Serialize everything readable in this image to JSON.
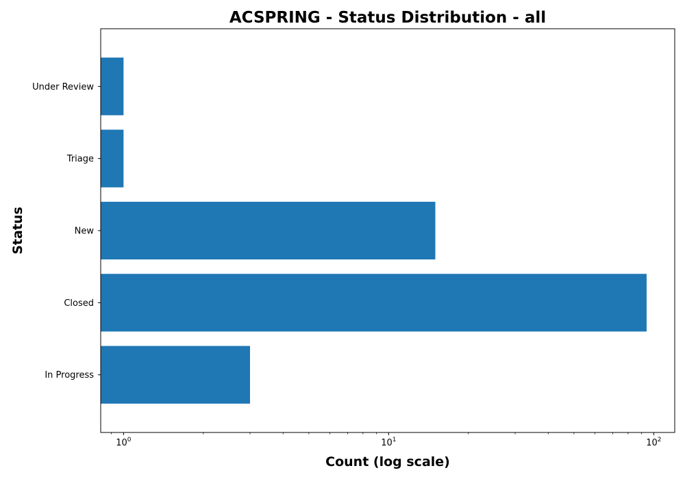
{
  "chart_data": {
    "type": "bar",
    "orientation": "horizontal",
    "title": "ACSPRING - Status Distribution - all",
    "xlabel": "Count (log scale)",
    "ylabel": "Status",
    "x_scale": "log",
    "xlim": [
      0.82,
      120
    ],
    "x_ticks": [
      {
        "value": 1,
        "base": "10",
        "exp": "0"
      },
      {
        "value": 10,
        "base": "10",
        "exp": "1"
      },
      {
        "value": 100,
        "base": "10",
        "exp": "2"
      }
    ],
    "categories": [
      "In Progress",
      "Closed",
      "New",
      "Triage",
      "Under Review"
    ],
    "values": [
      3,
      94,
      15,
      1,
      1
    ],
    "bar_color": "#1f77b4",
    "grid": false,
    "legend": "none"
  }
}
